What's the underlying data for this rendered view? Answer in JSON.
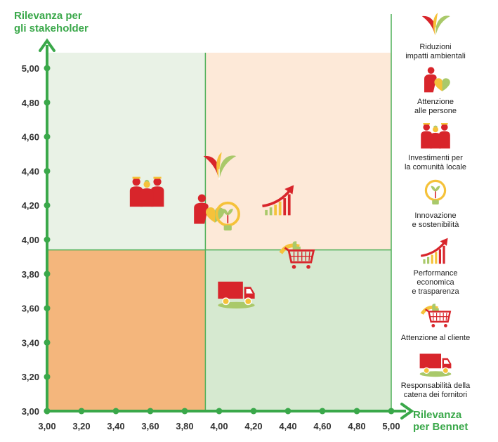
{
  "chart_data": {
    "type": "scatter",
    "title": "",
    "xlabel": "Rilevanza per Bennet",
    "ylabel": "Rilevanza per gli stakeholder",
    "xlim": [
      3.0,
      5.0
    ],
    "ylim": [
      3.0,
      5.0
    ],
    "x_ticks": [
      "3,00",
      "3,20",
      "3,40",
      "3,60",
      "3,80",
      "4,00",
      "4,20",
      "4,40",
      "4,60",
      "4,80",
      "5,00"
    ],
    "y_ticks": [
      "3,00",
      "3,20",
      "3,40",
      "3,60",
      "3,80",
      "4,00",
      "4,20",
      "4,40",
      "4,60",
      "4,80",
      "5,00"
    ],
    "threshold": {
      "x": 3.92,
      "y": 3.94
    },
    "quadrant_colors": {
      "top_left": "#e9f2e6",
      "top_right": "#fde9d8",
      "bottom_left": "#f4b67c",
      "bottom_right": "#d6e9d0"
    },
    "grid": false,
    "legend_position": "right",
    "points": [
      {
        "icon": "leaves-icon",
        "x": 4.0,
        "y": 4.43
      },
      {
        "icon": "people-icon",
        "x": 3.58,
        "y": 4.28
      },
      {
        "icon": "person-heart-icon",
        "x": 3.93,
        "y": 4.18
      },
      {
        "icon": "lightbulb-icon",
        "x": 4.05,
        "y": 4.13
      },
      {
        "icon": "growth-arrow-icon",
        "x": 4.35,
        "y": 4.23
      },
      {
        "icon": "cart-thumb-icon",
        "x": 4.45,
        "y": 3.91
      },
      {
        "icon": "truck-icon",
        "x": 4.1,
        "y": 3.69
      }
    ],
    "legend": [
      {
        "icon": "leaves-icon",
        "label_lines": [
          "Riduzioni",
          "impatti ambientali"
        ]
      },
      {
        "icon": "person-heart-icon",
        "label_lines": [
          "Attenzione",
          "alle persone"
        ]
      },
      {
        "icon": "people-icon",
        "label_lines": [
          "Investimenti per",
          "la comunità locale"
        ]
      },
      {
        "icon": "lightbulb-icon",
        "label_lines": [
          "Innovazione",
          "e sostenibilità"
        ]
      },
      {
        "icon": "growth-arrow-icon",
        "label_lines": [
          "Performance",
          "economica",
          "e trasparenza"
        ]
      },
      {
        "icon": "cart-thumb-icon",
        "label_lines": [
          "Attenzione al cliente"
        ]
      },
      {
        "icon": "truck-icon",
        "label_lines": [
          "Responsabilità della",
          "catena dei fornitori"
        ]
      }
    ]
  },
  "axes": {
    "x_title_lines": [
      "Rilevanza",
      "per Bennet"
    ],
    "y_title_lines": [
      "Rilevanza per",
      "gli stakeholder"
    ]
  },
  "colors": {
    "axis_green": "#3aa84a",
    "red": "#d8252b",
    "yellow": "#f5c23a",
    "light_green": "#a9c96a",
    "divider": "#4fb058"
  }
}
